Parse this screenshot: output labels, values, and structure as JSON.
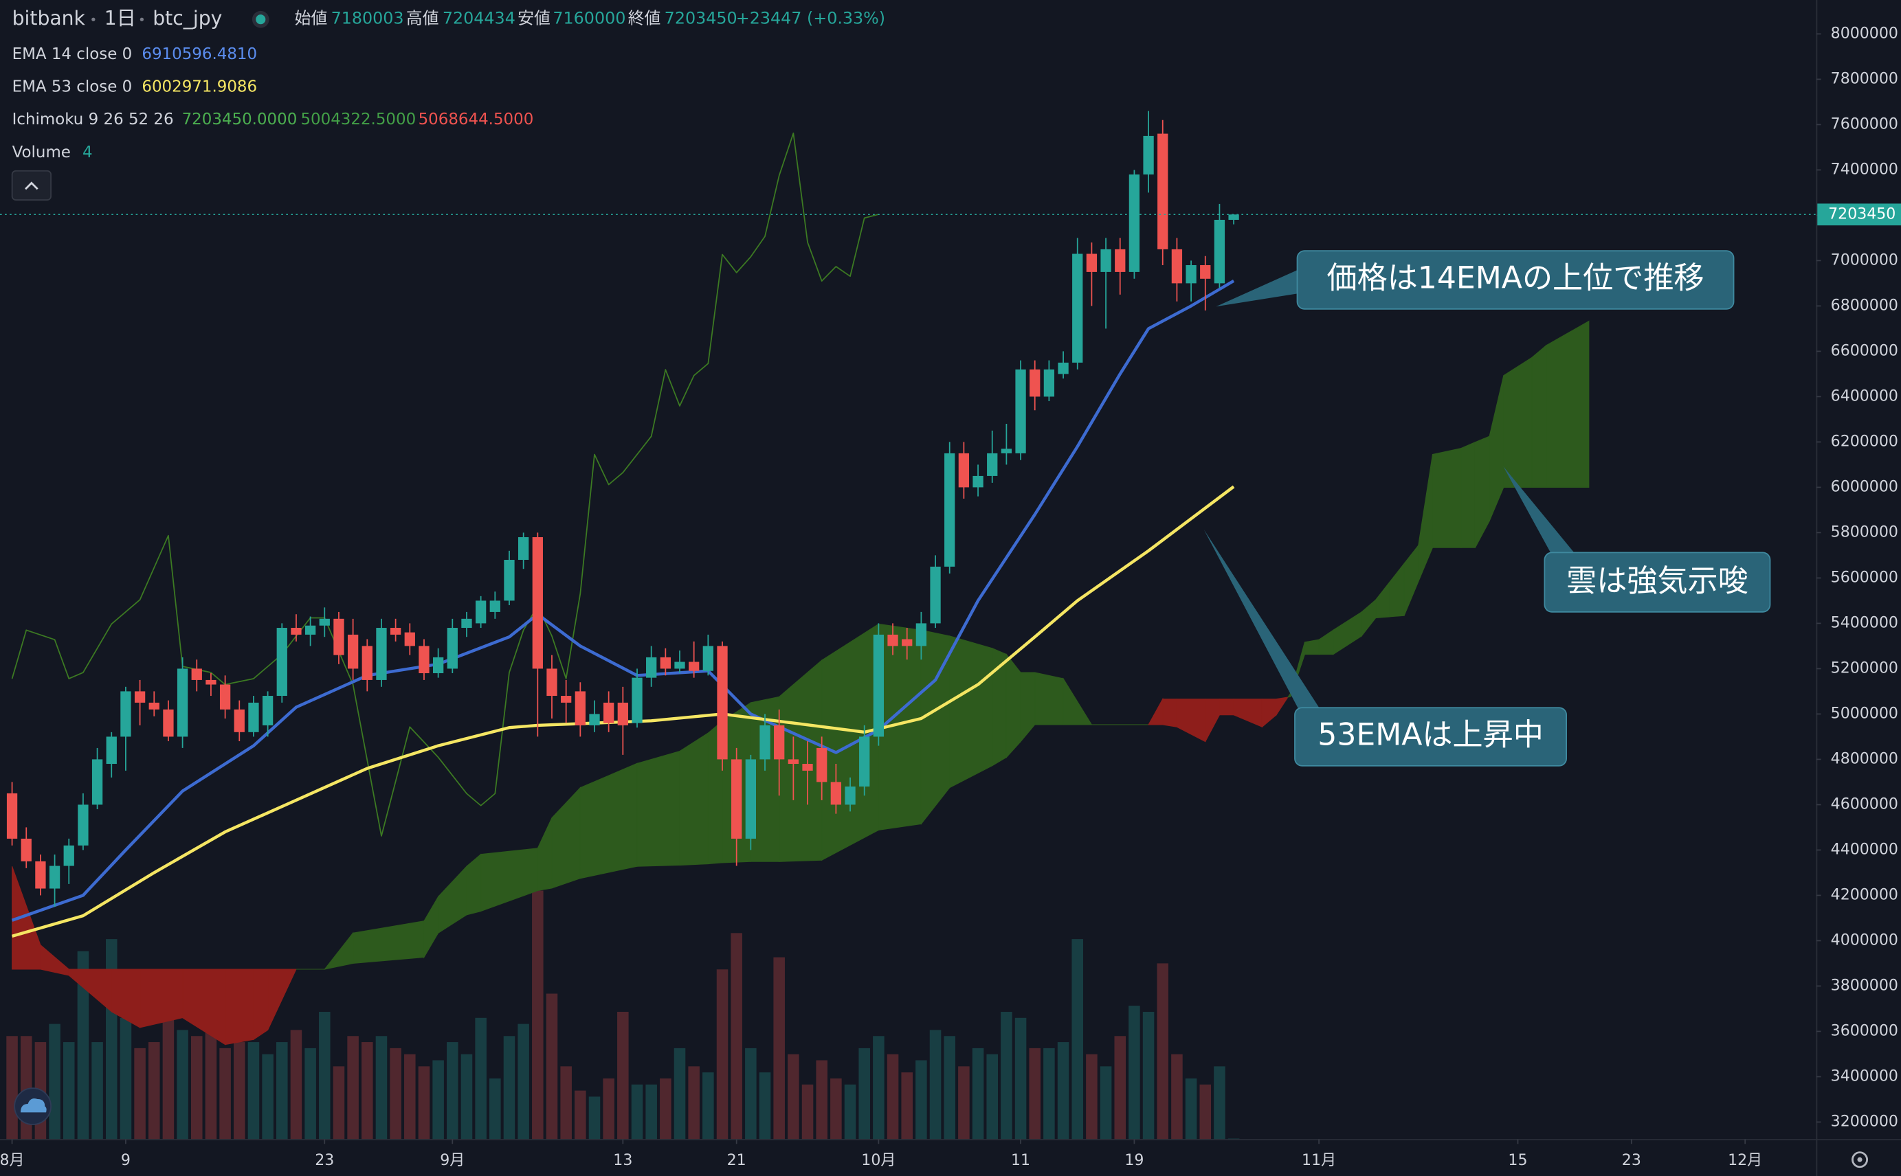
{
  "header": {
    "exchange": "bitbank",
    "interval": "1日",
    "symbol": "btc_jpy",
    "open_label": "始値",
    "high_label": "高値",
    "low_label": "安値",
    "close_label": "終値",
    "change": "+23447 (+0.33%)"
  },
  "chart_data": {
    "type": "candlestick",
    "colors": {
      "up": "#26a69a",
      "down": "#ef5350"
    },
    "x": [
      0,
      1,
      2,
      3,
      4,
      5,
      6,
      7,
      8,
      9,
      10,
      11,
      12,
      13,
      14,
      15,
      16,
      17,
      18,
      19,
      20,
      21,
      22,
      23,
      24,
      25,
      26,
      27,
      28,
      29,
      30,
      31,
      32,
      33,
      34,
      35,
      36,
      37,
      38,
      39,
      40,
      41,
      42,
      43,
      44,
      45,
      46,
      47,
      48,
      49,
      50,
      51,
      52,
      53,
      54,
      55,
      56,
      57,
      58,
      59,
      60,
      61,
      62,
      63,
      64,
      65,
      66,
      67,
      68,
      69,
      70,
      71,
      72,
      73,
      74,
      75,
      76,
      77,
      78,
      79,
      80,
      81,
      82,
      83,
      84,
      85,
      86
    ],
    "candles": [
      [
        4650000,
        4700000,
        4420000,
        4450000
      ],
      [
        4450000,
        4500000,
        4320000,
        4350000
      ],
      [
        4350000,
        4380000,
        4200000,
        4230000
      ],
      [
        4230000,
        4380000,
        4150000,
        4330000
      ],
      [
        4330000,
        4450000,
        4250000,
        4420000
      ],
      [
        4420000,
        4650000,
        4400000,
        4600000
      ],
      [
        4600000,
        4850000,
        4580000,
        4800000
      ],
      [
        4780000,
        4920000,
        4720000,
        4900000
      ],
      [
        4900000,
        5120000,
        4750000,
        5100000
      ],
      [
        5100000,
        5150000,
        4950000,
        5050000
      ],
      [
        5050000,
        5100000,
        4990000,
        5020000
      ],
      [
        5020000,
        5060000,
        4880000,
        4900000
      ],
      [
        4900000,
        5250000,
        4850000,
        5200000
      ],
      [
        5200000,
        5240000,
        5100000,
        5150000
      ],
      [
        5150000,
        5180000,
        5080000,
        5130000
      ],
      [
        5130000,
        5170000,
        4980000,
        5020000
      ],
      [
        5020000,
        5060000,
        4880000,
        4920000
      ],
      [
        4920000,
        5080000,
        4900000,
        5050000
      ],
      [
        4950000,
        5100000,
        4900000,
        5080000
      ],
      [
        5080000,
        5400000,
        5050000,
        5380000
      ],
      [
        5380000,
        5440000,
        5320000,
        5350000
      ],
      [
        5350000,
        5430000,
        5300000,
        5390000
      ],
      [
        5390000,
        5470000,
        5340000,
        5420000
      ],
      [
        5420000,
        5450000,
        5220000,
        5260000
      ],
      [
        5350000,
        5420000,
        5150000,
        5200000
      ],
      [
        5300000,
        5330000,
        5100000,
        5150000
      ],
      [
        5150000,
        5420000,
        5120000,
        5380000
      ],
      [
        5380000,
        5420000,
        5320000,
        5350000
      ],
      [
        5360000,
        5400000,
        5260000,
        5300000
      ],
      [
        5300000,
        5330000,
        5150000,
        5180000
      ],
      [
        5180000,
        5290000,
        5160000,
        5250000
      ],
      [
        5200000,
        5420000,
        5180000,
        5380000
      ],
      [
        5380000,
        5450000,
        5340000,
        5420000
      ],
      [
        5400000,
        5520000,
        5380000,
        5500000
      ],
      [
        5450000,
        5540000,
        5420000,
        5500000
      ],
      [
        5500000,
        5720000,
        5480000,
        5680000
      ],
      [
        5680000,
        5800000,
        5640000,
        5780000
      ],
      [
        5780000,
        5800000,
        4900000,
        5200000
      ],
      [
        5200000,
        5260000,
        4980000,
        5080000
      ],
      [
        5080000,
        5150000,
        4960000,
        5050000
      ],
      [
        5100000,
        5140000,
        4900000,
        4950000
      ],
      [
        4950000,
        5060000,
        4920000,
        5000000
      ],
      [
        5050000,
        5100000,
        4920000,
        4960000
      ],
      [
        5050000,
        5120000,
        4820000,
        4950000
      ],
      [
        4960000,
        5200000,
        4940000,
        5160000
      ],
      [
        5160000,
        5300000,
        5120000,
        5250000
      ],
      [
        5250000,
        5290000,
        5170000,
        5200000
      ],
      [
        5200000,
        5280000,
        5180000,
        5230000
      ],
      [
        5230000,
        5320000,
        5160000,
        5190000
      ],
      [
        5190000,
        5350000,
        5170000,
        5300000
      ],
      [
        5300000,
        5320000,
        4750000,
        4800000
      ],
      [
        4800000,
        4850000,
        4330000,
        4450000
      ],
      [
        4450000,
        4820000,
        4400000,
        4800000
      ],
      [
        4800000,
        5000000,
        4750000,
        4950000
      ],
      [
        4950000,
        5020000,
        4640000,
        4800000
      ],
      [
        4800000,
        4900000,
        4620000,
        4780000
      ],
      [
        4780000,
        4880000,
        4600000,
        4750000
      ],
      [
        4850000,
        4900000,
        4620000,
        4700000
      ],
      [
        4700000,
        4780000,
        4560000,
        4600000
      ],
      [
        4600000,
        4720000,
        4570000,
        4680000
      ],
      [
        4680000,
        4950000,
        4640000,
        4900000
      ],
      [
        4900000,
        5400000,
        4860000,
        5350000
      ],
      [
        5350000,
        5400000,
        5260000,
        5300000
      ],
      [
        5330000,
        5380000,
        5240000,
        5300000
      ],
      [
        5300000,
        5450000,
        5240000,
        5400000
      ],
      [
        5400000,
        5700000,
        5380000,
        5650000
      ],
      [
        5650000,
        6200000,
        5620000,
        6150000
      ],
      [
        6150000,
        6200000,
        5950000,
        6000000
      ],
      [
        6000000,
        6100000,
        5960000,
        6050000
      ],
      [
        6050000,
        6250000,
        6020000,
        6150000
      ],
      [
        6150000,
        6280000,
        6100000,
        6170000
      ],
      [
        6150000,
        6560000,
        6120000,
        6520000
      ],
      [
        6520000,
        6560000,
        6340000,
        6400000
      ],
      [
        6400000,
        6560000,
        6380000,
        6520000
      ],
      [
        6500000,
        6600000,
        6480000,
        6550000
      ],
      [
        6550000,
        7100000,
        6520000,
        7030000
      ],
      [
        7030000,
        7080000,
        6800000,
        6950000
      ],
      [
        6950000,
        7100000,
        6700000,
        7050000
      ],
      [
        7050000,
        7100000,
        6850000,
        6950000
      ],
      [
        6950000,
        7400000,
        6920000,
        7380000
      ],
      [
        7380000,
        7660000,
        7300000,
        7550000
      ],
      [
        7560000,
        7620000,
        6980000,
        7050000
      ],
      [
        7050000,
        7100000,
        6820000,
        6900000
      ],
      [
        6900000,
        7000000,
        6820000,
        6980000
      ],
      [
        6980000,
        7020000,
        6780000,
        6920000
      ],
      [
        6900000,
        7250000,
        6880000,
        7180000
      ],
      [
        7180003,
        7204434,
        7160000,
        7203450
      ]
    ],
    "volume": {
      "name": "Volume",
      "values": [
        850,
        850,
        800,
        950,
        800,
        1550,
        800,
        1650,
        1000,
        750,
        800,
        1100,
        900,
        850,
        950,
        750,
        800,
        800,
        700,
        800,
        900,
        750,
        1050,
        600,
        850,
        800,
        850,
        750,
        700,
        600,
        650,
        800,
        700,
        1000,
        500,
        850,
        950,
        2050,
        1200,
        600,
        400,
        350,
        500,
        1050,
        450,
        450,
        500,
        750,
        600,
        550,
        1400,
        1700,
        750,
        550,
        1500,
        700,
        450,
        650,
        500,
        450,
        750,
        850,
        700,
        550,
        650,
        900,
        850,
        600,
        750,
        700,
        1050,
        1000,
        750,
        750,
        800,
        1650,
        700,
        600,
        850,
        1100,
        1050,
        1450,
        700,
        500,
        450,
        600,
        4
      ]
    },
    "ema": [
      {
        "name": "EMA 14 close 0",
        "color": "#3d6bd1",
        "value_label": "6910596.4810",
        "x": [
          0,
          5,
          8,
          12,
          17,
          20,
          25,
          30,
          35,
          37,
          40,
          44,
          49,
          52,
          58,
          61,
          65,
          68,
          72,
          75,
          78,
          80,
          83,
          86
        ],
        "values": [
          4090000,
          4200000,
          4400000,
          4660000,
          4860000,
          5030000,
          5170000,
          5220000,
          5340000,
          5440000,
          5300000,
          5170000,
          5190000,
          5000000,
          4830000,
          4930000,
          5150000,
          5500000,
          5880000,
          6180000,
          6500000,
          6700000,
          6800000,
          6910596.481
        ]
      },
      {
        "name": "EMA 53 close 0",
        "color": "#f5e663",
        "value_label": "6002971.9086",
        "x": [
          0,
          5,
          10,
          15,
          20,
          25,
          30,
          35,
          37,
          45,
          50,
          55,
          60,
          64,
          68,
          72,
          75,
          80,
          86
        ],
        "values": [
          4020000,
          4110000,
          4300000,
          4480000,
          4620000,
          4760000,
          4860000,
          4940000,
          4950000,
          4970000,
          5000000,
          4960000,
          4920000,
          4980000,
          5130000,
          5340000,
          5500000,
          5720000,
          6002971.9086
        ]
      }
    ],
    "ichimoku": {
      "name": "Ichimoku 9 26 52 26",
      "value_labels": [
        "7203450.0000",
        "5004322.5000",
        "5068644.5000"
      ],
      "label_colors": [
        "#4caf50",
        "#43a047",
        "#ef5350"
      ],
      "lagging": {
        "color": "#3c7a22",
        "x": [
          0,
          1,
          3,
          4,
          5,
          7,
          9,
          11,
          12,
          14,
          15,
          17,
          19,
          21,
          22,
          24,
          26,
          28,
          30,
          32,
          33,
          34,
          35,
          36,
          37,
          38,
          39,
          40,
          41,
          42,
          43,
          44,
          45,
          46,
          47,
          48,
          49,
          50,
          51,
          52,
          53,
          54,
          55,
          56,
          57,
          58,
          59,
          60,
          61
        ],
        "values": [
          5156000,
          5370000,
          5328000,
          5156000,
          5183000,
          5397000,
          5504000,
          5787000,
          5210000,
          5183000,
          5130000,
          5156000,
          5263000,
          5424000,
          5424000,
          5130000,
          4462000,
          4943000,
          4809000,
          4649000,
          4596000,
          4649000,
          5183000,
          5370000,
          5477000,
          5344000,
          5156000,
          5531000,
          6145000,
          6012000,
          6065000,
          6145000,
          6225000,
          6519000,
          6359000,
          6493000,
          6546000,
          7027000,
          6947000,
          7017000,
          7107000,
          7375000,
          7562000,
          7081000,
          6910000,
          6974000,
          6931000,
          7188000,
          7204000
        ]
      },
      "cloud": {
        "up_color": "#2d5a1d",
        "down_color": "#8e1e1b",
        "x": [
          0,
          2,
          4,
          7,
          9,
          12,
          15,
          17,
          18,
          20,
          22,
          24,
          29,
          30,
          32,
          33,
          37,
          38,
          40,
          44,
          47,
          49,
          50,
          52,
          54,
          57,
          61,
          64,
          66,
          69,
          70,
          71,
          72,
          74,
          76,
          80,
          81,
          82,
          84,
          85,
          86,
          88,
          89,
          90,
          91,
          92,
          93,
          95,
          96,
          97,
          98,
          99,
          100,
          102,
          103,
          104,
          105,
          107,
          108,
          111
        ],
        "span_a": [
          3874000,
          3874000,
          3847000,
          3687000,
          3617000,
          3660000,
          3542000,
          3564000,
          3606000,
          3874000,
          3874000,
          4034000,
          4087000,
          4194000,
          4328000,
          4381000,
          4408000,
          4542000,
          4675000,
          4782000,
          4836000,
          4916000,
          4969000,
          5050000,
          5076000,
          5237000,
          5397000,
          5370000,
          5344000,
          5290000,
          5263000,
          5183000,
          5183000,
          5156000,
          4953000,
          4953000,
          4953000,
          4943000,
          4878000,
          4996000,
          4996000,
          4943000,
          4996000,
          5092000,
          5317000,
          5328000,
          5370000,
          5450000,
          5504000,
          5584000,
          5664000,
          5744000,
          6145000,
          6172000,
          6199000,
          6225000,
          6493000,
          6573000,
          6626000,
          6733000
        ],
        "span_b": [
          4328000,
          3981000,
          3874000,
          3874000,
          3874000,
          3874000,
          3874000,
          3874000,
          3874000,
          3874000,
          3874000,
          3900000,
          3927000,
          4034000,
          4114000,
          4130000,
          4221000,
          4232000,
          4275000,
          4328000,
          4333000,
          4339000,
          4344000,
          4349000,
          4349000,
          4355000,
          4488000,
          4515000,
          4675000,
          4772000,
          4809000,
          4878000,
          4953000,
          4953000,
          4953000,
          4953000,
          5066000,
          5066000,
          5066000,
          5066000,
          5066000,
          5066000,
          5066000,
          5076000,
          5263000,
          5263000,
          5263000,
          5344000,
          5424000,
          5429000,
          5434000,
          5584000,
          5734000,
          5734000,
          5734000,
          5851000,
          6000000,
          6000000,
          6000000,
          6000000
        ]
      }
    },
    "xlim": [
      -0.85,
      127
    ],
    "xticks": [
      {
        "value": 0,
        "label": "8月"
      },
      {
        "value": 8,
        "label": "9"
      },
      {
        "value": 22,
        "label": "23"
      },
      {
        "value": 31,
        "label": "9月"
      },
      {
        "value": 43,
        "label": "13"
      },
      {
        "value": 51,
        "label": "21"
      },
      {
        "value": 61,
        "label": "10月"
      },
      {
        "value": 71,
        "label": "11"
      },
      {
        "value": 79,
        "label": "19"
      },
      {
        "value": 92,
        "label": "11月"
      },
      {
        "value": 106,
        "label": "15"
      },
      {
        "value": 114,
        "label": "23"
      },
      {
        "value": 122,
        "label": "12月"
      }
    ],
    "ylim": [
      3125000,
      8149660
    ],
    "yticks": [
      3200000,
      3400000,
      3600000,
      3800000,
      4000000,
      4200000,
      4400000,
      4600000,
      4800000,
      5000000,
      5200000,
      5400000,
      5600000,
      5800000,
      6000000,
      6200000,
      6400000,
      6600000,
      6800000,
      7000000,
      7200000,
      7400000,
      7600000,
      7800000,
      8000000
    ],
    "grid": false,
    "annotations": [
      {
        "text": "価格は14EMAの上位で推移"
      },
      {
        "text": "雲は強気示唆"
      },
      {
        "text": "53EMAは上昇中"
      }
    ]
  }
}
